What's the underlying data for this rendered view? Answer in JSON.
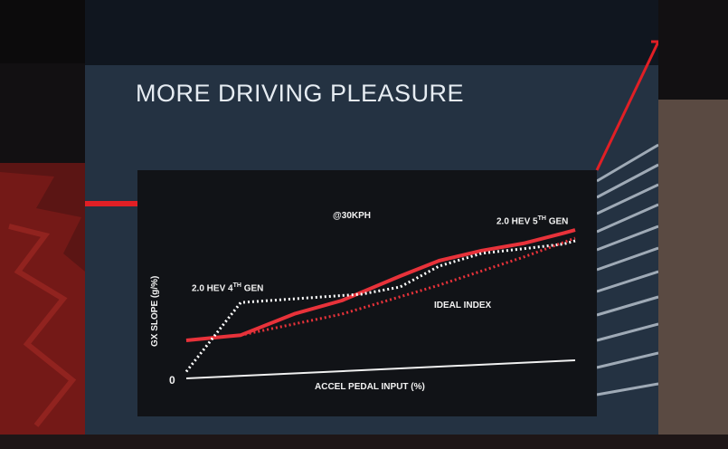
{
  "slide": {
    "title": "MORE DRIVING PLEASURE"
  },
  "chart": {
    "speed_note": "@30KPH",
    "y_label": "GX SLOPE (g/%)",
    "x_label": "ACCEL PEDAL INPUT (%)",
    "origin_label": "0",
    "series_5th_prefix": "2.0 HEV 5",
    "series_5th_sup": "TH",
    "series_5th_suffix": " GEN",
    "series_4th_prefix": "2.0 HEV 4",
    "series_4th_sup": "TH",
    "series_4th_suffix": " GEN",
    "series_ideal": "IDEAL INDEX"
  },
  "colors": {
    "slide_bg": "#202c3a",
    "chart_bg": "#111317",
    "series_5th": "#e8323a",
    "series_4th": "#ffffff",
    "series_ideal": "#e8323a",
    "accent": "#e11f25"
  },
  "chart_data": {
    "type": "line",
    "x_label": "ACCEL PEDAL INPUT (%)",
    "y_label": "GX SLOPE (g/%)",
    "series": [
      {
        "name": "2.0 HEV 5TH GEN",
        "style": "solid",
        "x": [
          0,
          14,
          28,
          40,
          55,
          65,
          76,
          87,
          97,
          100
        ],
        "y": [
          0.28,
          0.3,
          0.44,
          0.52,
          0.68,
          0.78,
          0.84,
          0.88,
          0.94,
          0.96
        ]
      },
      {
        "name": "2.0 HEV 4TH GEN",
        "style": "dotted",
        "x": [
          0,
          14,
          45,
          55,
          65,
          76,
          87,
          97,
          100
        ],
        "y": [
          0.05,
          0.54,
          0.56,
          0.6,
          0.74,
          0.82,
          0.84,
          0.86,
          0.88
        ]
      },
      {
        "name": "IDEAL INDEX",
        "style": "dotted",
        "x": [
          0,
          14,
          40,
          65,
          87,
          100
        ],
        "y": [
          0.28,
          0.3,
          0.42,
          0.6,
          0.78,
          0.9
        ]
      }
    ]
  }
}
